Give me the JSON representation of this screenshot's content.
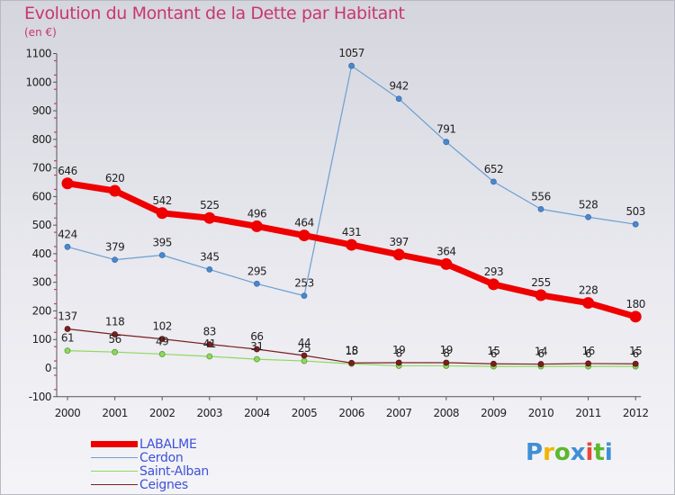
{
  "header": {
    "title": "Evolution du Montant de la Dette par Habitant",
    "unit": "(en €)"
  },
  "logo": {
    "letters": [
      {
        "ch": "P",
        "color": "#3f8fd6"
      },
      {
        "ch": "r",
        "color": "#f2b400"
      },
      {
        "ch": "o",
        "color": "#5cb82d"
      },
      {
        "ch": "x",
        "color": "#3f8fd6"
      },
      {
        "ch": "i",
        "color": "#e8483a"
      },
      {
        "ch": "t",
        "color": "#5cb82d"
      },
      {
        "ch": "i",
        "color": "#3f8fd6"
      }
    ]
  },
  "chart_data": {
    "type": "line",
    "title": "Evolution du Montant de la Dette par Habitant",
    "ylabel": "(en €)",
    "xlabel": "",
    "ylim": [
      -100,
      1100
    ],
    "yticks": [
      -100,
      0,
      100,
      200,
      300,
      400,
      500,
      600,
      700,
      800,
      900,
      1000,
      1100
    ],
    "grid": false,
    "legend_position": "bottom-left",
    "categories": [
      "2000",
      "2001",
      "2002",
      "2003",
      "2004",
      "2005",
      "2006",
      "2007",
      "2008",
      "2009",
      "2010",
      "2011",
      "2012"
    ],
    "series": [
      {
        "name": "LABALME",
        "color": "#ee0000",
        "values": [
          646,
          620,
          542,
          525,
          496,
          464,
          431,
          397,
          364,
          293,
          255,
          228,
          180
        ]
      },
      {
        "name": "Cerdon",
        "color": "#6b9fd1",
        "values": [
          424,
          379,
          395,
          345,
          295,
          253,
          1057,
          942,
          791,
          652,
          556,
          528,
          503
        ]
      },
      {
        "name": "Saint-Alban",
        "color": "#8fd85e",
        "values": [
          61,
          56,
          49,
          41,
          31,
          25,
          15,
          8,
          8,
          6,
          6,
          6,
          6
        ]
      },
      {
        "name": "Ceignes",
        "color": "#7a1f1f",
        "values": [
          137,
          118,
          102,
          83,
          66,
          44,
          18,
          19,
          19,
          15,
          14,
          16,
          15
        ]
      }
    ]
  }
}
